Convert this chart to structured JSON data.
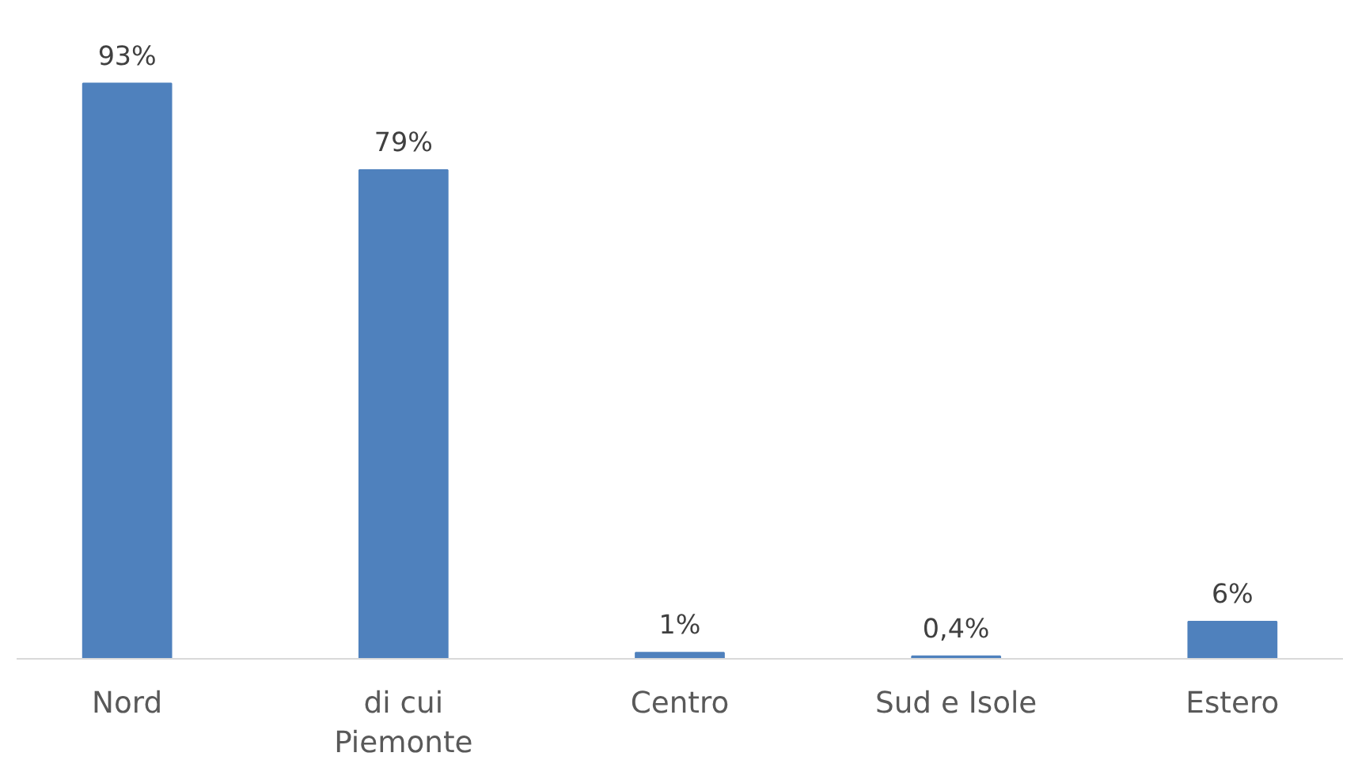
{
  "chart_data": {
    "type": "bar",
    "categories": [
      "Nord",
      "di cui\nPiemonte",
      "Centro",
      "Sud e Isole",
      "Estero"
    ],
    "values": [
      93,
      79,
      1,
      0.4,
      6
    ],
    "value_labels": [
      "93%",
      "79%",
      "1%",
      "0,4%",
      "6%"
    ],
    "color": "#4f81bd",
    "grid": false,
    "tick_labels": "x"
  }
}
